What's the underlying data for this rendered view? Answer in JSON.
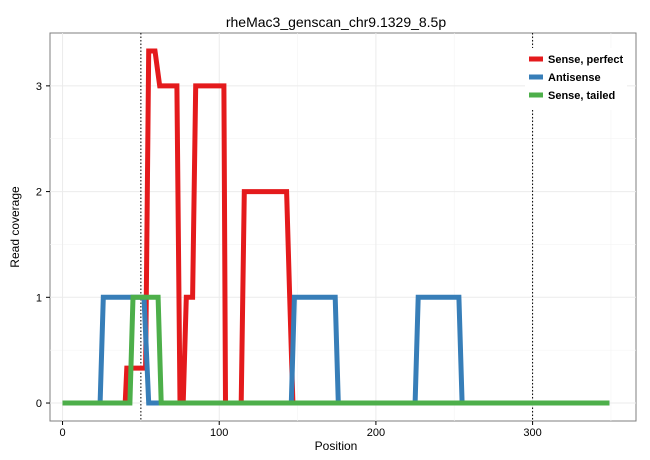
{
  "chart_data": {
    "type": "line",
    "title": "rheMac3_genscan_chr9.1329_8.5p",
    "xlabel": "Position",
    "ylabel": "Read coverage",
    "xlim": [
      -8,
      366
    ],
    "ylim": [
      -0.17,
      3.5
    ],
    "x_ticks": [
      0,
      100,
      200,
      300
    ],
    "y_ticks": [
      0,
      1,
      2,
      3
    ],
    "grid": true,
    "vlines": [
      50,
      300
    ],
    "legend_position": "top-right",
    "series": [
      {
        "name": "Sense, perfect",
        "color": "#e41a1c",
        "points": [
          [
            0,
            0
          ],
          [
            40,
            0
          ],
          [
            41,
            0.33
          ],
          [
            53,
            0.33
          ],
          [
            55,
            3.33
          ],
          [
            59,
            3.33
          ],
          [
            62,
            3.0
          ],
          [
            73,
            3.0
          ],
          [
            75,
            0
          ],
          [
            77,
            0
          ],
          [
            79,
            1.0
          ],
          [
            83,
            1.0
          ],
          [
            85,
            3.0
          ],
          [
            103,
            3.0
          ],
          [
            104,
            0
          ],
          [
            114,
            0
          ],
          [
            116,
            2.0
          ],
          [
            143,
            2.0
          ],
          [
            145,
            1.0
          ],
          [
            147,
            0
          ],
          [
            349,
            0
          ]
        ]
      },
      {
        "name": "Antisense",
        "color": "#377eb8",
        "points": [
          [
            0,
            0
          ],
          [
            24,
            0
          ],
          [
            26,
            1.0
          ],
          [
            52,
            1.0
          ],
          [
            55,
            0
          ],
          [
            146,
            0
          ],
          [
            148,
            1.0
          ],
          [
            174,
            1.0
          ],
          [
            176,
            0
          ],
          [
            225,
            0
          ],
          [
            227,
            1.0
          ],
          [
            253,
            1.0
          ],
          [
            255,
            0
          ],
          [
            349,
            0
          ]
        ]
      },
      {
        "name": "Sense, tailed",
        "color": "#4daf4a",
        "points": [
          [
            0,
            0
          ],
          [
            43,
            0
          ],
          [
            45,
            1.0
          ],
          [
            61,
            1.0
          ],
          [
            63,
            0
          ],
          [
            349,
            0
          ]
        ]
      }
    ]
  }
}
